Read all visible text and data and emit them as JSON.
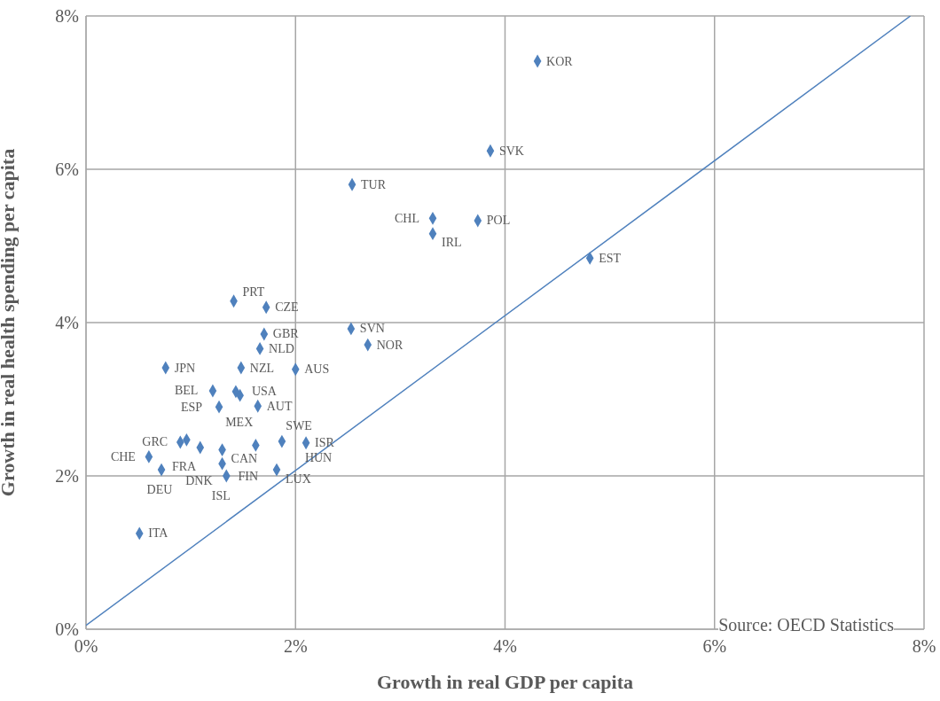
{
  "chart_data": {
    "type": "scatter",
    "xlabel": "Growth in real GDP per capita",
    "ylabel": "Growth in real health spending per capita",
    "xlim": [
      0,
      8
    ],
    "ylim": [
      0,
      8
    ],
    "xticks": [
      {
        "value": 0,
        "label": "0%"
      },
      {
        "value": 2,
        "label": "2%"
      },
      {
        "value": 4,
        "label": "4%"
      },
      {
        "value": 6,
        "label": "6%"
      },
      {
        "value": 8,
        "label": "8%"
      }
    ],
    "yticks": [
      {
        "value": 0,
        "label": "0%"
      },
      {
        "value": 2,
        "label": "2%"
      },
      {
        "value": 4,
        "label": "4%"
      },
      {
        "value": 6,
        "label": "6%"
      },
      {
        "value": 8,
        "label": "8%"
      }
    ],
    "grid": true,
    "series": [
      {
        "marker": "diamond",
        "color": "#4f81bd",
        "x": [
          4.31,
          3.86,
          2.54,
          3.31,
          3.74,
          3.31,
          4.81,
          1.41,
          1.72,
          2.53,
          2.69,
          1.7,
          1.66,
          0.76,
          1.48,
          2.0,
          1.21,
          1.43,
          1.47,
          1.27,
          1.64,
          0.9,
          0.96,
          1.09,
          1.3,
          1.62,
          1.87,
          2.1,
          0.6,
          0.72,
          1.3,
          1.34,
          1.82,
          0.51
        ],
        "values": [
          7.41,
          6.24,
          5.8,
          5.36,
          5.33,
          5.16,
          4.84,
          4.28,
          4.2,
          3.92,
          3.71,
          3.85,
          3.66,
          3.41,
          3.41,
          3.39,
          3.11,
          3.1,
          3.05,
          2.9,
          2.91,
          2.44,
          2.47,
          2.37,
          2.34,
          2.4,
          2.45,
          2.43,
          2.25,
          2.08,
          2.16,
          2.0,
          2.08,
          1.25
        ]
      },
      {
        "type": "line",
        "marker": "none",
        "color": "#4f81bd",
        "x": [
          0,
          7.87
        ],
        "values": [
          0.05,
          8.0
        ]
      }
    ],
    "annotations": [
      {
        "text": "KOR",
        "x": 4.31,
        "y": 7.41
      },
      {
        "text": "SVK",
        "x": 3.86,
        "y": 6.24
      },
      {
        "text": "TUR",
        "x": 2.54,
        "y": 5.8
      },
      {
        "text": "CHL",
        "x": 3.31,
        "y": 5.36
      },
      {
        "text": "POL",
        "x": 3.74,
        "y": 5.33
      },
      {
        "text": "IRL",
        "x": 3.31,
        "y": 5.16
      },
      {
        "text": "EST",
        "x": 4.81,
        "y": 4.84
      },
      {
        "text": "PRT",
        "x": 1.41,
        "y": 4.28
      },
      {
        "text": "CZE",
        "x": 1.72,
        "y": 4.2
      },
      {
        "text": "SVN",
        "x": 2.53,
        "y": 3.92
      },
      {
        "text": "NOR",
        "x": 2.69,
        "y": 3.71
      },
      {
        "text": "GBR",
        "x": 1.7,
        "y": 3.85
      },
      {
        "text": "NLD",
        "x": 1.66,
        "y": 3.66
      },
      {
        "text": "JPN",
        "x": 0.76,
        "y": 3.41
      },
      {
        "text": "NZL",
        "x": 1.48,
        "y": 3.41
      },
      {
        "text": "AUS",
        "x": 2.0,
        "y": 3.39
      },
      {
        "text": "BEL",
        "x": 1.21,
        "y": 3.11
      },
      {
        "text": "USA",
        "x": 1.43,
        "y": 3.1
      },
      {
        "text": "MEX",
        "x": 1.47,
        "y": 3.05
      },
      {
        "text": "ESP",
        "x": 1.27,
        "y": 2.9
      },
      {
        "text": "AUT",
        "x": 1.64,
        "y": 2.91
      },
      {
        "text": "GRC",
        "x": 0.9,
        "y": 2.44
      },
      {
        "text": "FRA",
        "x": 0.96,
        "y": 2.47
      },
      {
        "text": "DNK",
        "x": 1.09,
        "y": 2.37
      },
      {
        "text": "CAN",
        "x": 1.3,
        "y": 2.34
      },
      {
        "text": "SWE",
        "x": 1.62,
        "y": 2.4
      },
      {
        "text": "HUN",
        "x": 1.87,
        "y": 2.45
      },
      {
        "text": "ISR",
        "x": 2.1,
        "y": 2.43
      },
      {
        "text": "CHE",
        "x": 0.6,
        "y": 2.25
      },
      {
        "text": "DEU",
        "x": 0.72,
        "y": 2.08
      },
      {
        "text": "FIN",
        "x": 1.3,
        "y": 2.16
      },
      {
        "text": "ISL",
        "x": 1.34,
        "y": 2.0
      },
      {
        "text": "LUX",
        "x": 1.82,
        "y": 2.08
      },
      {
        "text": "ITA",
        "x": 0.51,
        "y": 1.25
      },
      "Source: OECD Statistics"
    ]
  }
}
